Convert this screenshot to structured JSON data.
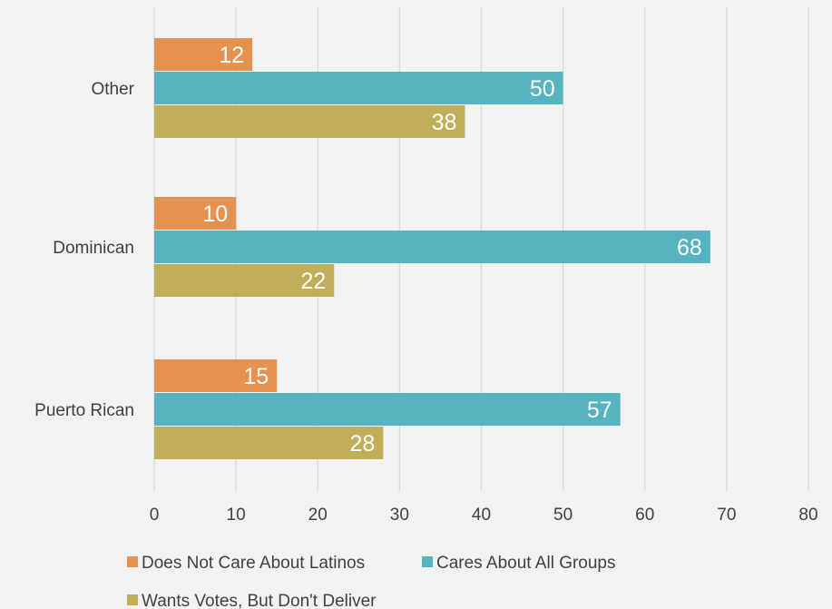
{
  "chart_data": {
    "type": "bar",
    "orientation": "horizontal",
    "categories": [
      "Other",
      "Dominican",
      "Puerto Rican"
    ],
    "series": [
      {
        "name": "Does Not Care About Latinos",
        "color": "#e5914f",
        "values": [
          12,
          10,
          15
        ]
      },
      {
        "name": "Cares About All Groups",
        "color": "#55b4bf",
        "values": [
          50,
          68,
          57
        ]
      },
      {
        "name": "Wants Votes, But Don't Deliver",
        "color": "#c0ae5a",
        "values": [
          38,
          22,
          28
        ]
      }
    ],
    "data_labels": [
      [
        "12",
        "50",
        "38"
      ],
      [
        "10",
        "68",
        "22"
      ],
      [
        "15",
        "57",
        "28"
      ]
    ],
    "xlim": [
      0,
      80
    ],
    "xticks": [
      0,
      10,
      20,
      30,
      40,
      50,
      60,
      70,
      80
    ],
    "tick_labels": [
      "0",
      "10",
      "20",
      "30",
      "40",
      "50",
      "60",
      "70",
      "80"
    ],
    "grid": true,
    "legend_position": "bottom",
    "background": "#f2f2f2"
  }
}
